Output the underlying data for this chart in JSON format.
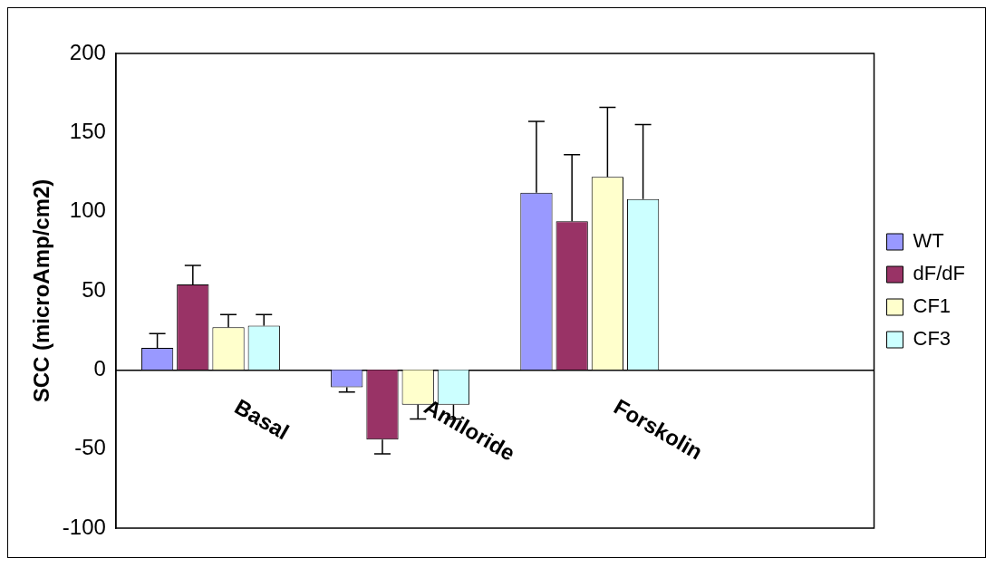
{
  "chart_data": {
    "type": "bar",
    "ylabel": "SCC (microAmp/cm2)",
    "categories": [
      "Basal",
      "Amiloride",
      "Forskolin",
      null
    ],
    "series": [
      {
        "name": "WT",
        "color": "#9999ff",
        "values": [
          14,
          -11,
          112,
          null
        ],
        "errors": [
          [
            14,
            23
          ],
          [
            -14,
            -11
          ],
          [
            112,
            157
          ],
          null
        ]
      },
      {
        "name": "dF/dF",
        "color": "#993366",
        "values": [
          54,
          -44,
          94,
          null
        ],
        "errors": [
          [
            54,
            66
          ],
          [
            -53,
            -44
          ],
          [
            94,
            136
          ],
          null
        ]
      },
      {
        "name": "CF1",
        "color": "#ffffcc",
        "values": [
          27,
          -22,
          122,
          null
        ],
        "errors": [
          [
            27,
            35
          ],
          [
            -31,
            -22
          ],
          [
            122,
            166
          ],
          null
        ]
      },
      {
        "name": "CF3",
        "color": "#ccffff",
        "values": [
          28,
          -22,
          108,
          null
        ],
        "errors": [
          [
            28,
            35
          ],
          [
            -31,
            -22
          ],
          [
            108,
            155
          ],
          null
        ]
      }
    ],
    "ylim": [
      -100,
      200
    ],
    "yticks": [
      -100,
      -50,
      0,
      50,
      100,
      150,
      200
    ],
    "grid": false,
    "legend": "right"
  }
}
